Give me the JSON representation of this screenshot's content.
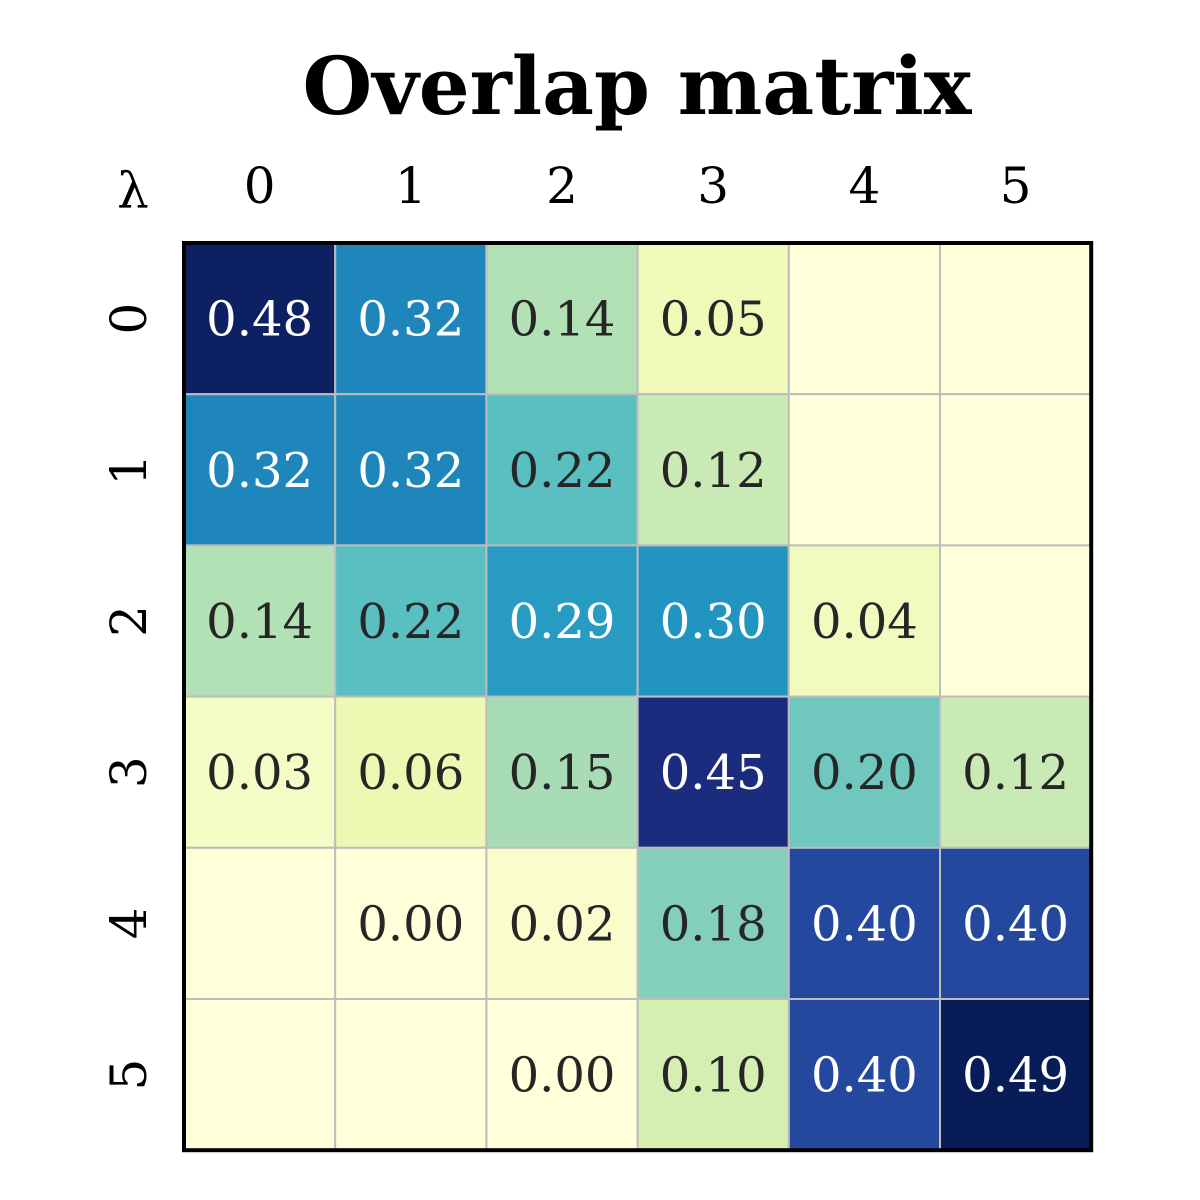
{
  "chart_data": {
    "type": "heatmap",
    "title": "Overlap matrix",
    "corner_label": "λ",
    "x_tick_labels": [
      "0",
      "1",
      "2",
      "3",
      "4",
      "5"
    ],
    "y_tick_labels": [
      "0",
      "1",
      "2",
      "3",
      "4",
      "5"
    ],
    "x_ticks_position": "top",
    "colormap": "YlGnBu",
    "vmin": 0,
    "vmax": 0.49,
    "grid": true,
    "gridline_color": "#bdbdbd",
    "frame_color": "#000000",
    "values": [
      [
        0.48,
        0.32,
        0.14,
        0.05,
        null,
        null
      ],
      [
        0.32,
        0.32,
        0.22,
        0.12,
        null,
        null
      ],
      [
        0.14,
        0.22,
        0.29,
        0.3,
        0.04,
        null
      ],
      [
        0.03,
        0.06,
        0.15,
        0.45,
        0.2,
        0.12
      ],
      [
        null,
        0.0,
        0.02,
        0.18,
        0.4,
        0.4
      ],
      [
        null,
        null,
        0.0,
        0.1,
        0.4,
        0.49
      ]
    ],
    "labels": [
      [
        "0.48",
        "0.32",
        "0.14",
        "0.05",
        "",
        ""
      ],
      [
        "0.32",
        "0.32",
        "0.22",
        "0.12",
        "",
        ""
      ],
      [
        "0.14",
        "0.22",
        "0.29",
        "0.30",
        "0.04",
        ""
      ],
      [
        "0.03",
        "0.06",
        "0.15",
        "0.45",
        "0.20",
        "0.12"
      ],
      [
        "",
        "0.00",
        "0.02",
        "0.18",
        "0.40",
        "0.40"
      ],
      [
        "",
        "",
        "0.00",
        "0.10",
        "0.40",
        "0.49"
      ]
    ],
    "light_text_color": "#ffffff",
    "dark_text_color": "#262626"
  }
}
